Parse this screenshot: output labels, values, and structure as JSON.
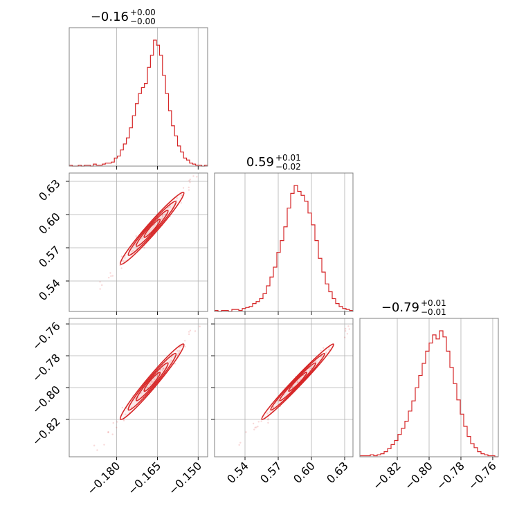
{
  "chart_data": {
    "type": "corner",
    "color": "#d62728",
    "grid": true,
    "parameters": [
      {
        "median": "−0.16",
        "upper": "+0.00",
        "lower": "−0.00",
        "range": [
          -0.1975,
          -0.1465
        ],
        "ticks": [
          -0.18,
          -0.165,
          -0.15
        ],
        "tick_labels": [
          "−0.180",
          "−0.165",
          "−0.150"
        ]
      },
      {
        "median": "0.59",
        "upper": "+0.01",
        "lower": "−0.02",
        "range": [
          0.5125,
          0.6375
        ],
        "ticks": [
          0.54,
          0.57,
          0.6,
          0.63
        ],
        "tick_labels": [
          "0.54",
          "0.57",
          "0.60",
          "0.63"
        ]
      },
      {
        "median": "−0.79",
        "upper": "+0.01",
        "lower": "−0.01",
        "range": [
          -0.8435,
          -0.7565
        ],
        "ticks": [
          -0.82,
          -0.8,
          -0.78,
          -0.76
        ],
        "tick_labels": [
          "−0.82",
          "−0.80",
          "−0.78",
          "−0.76"
        ]
      }
    ],
    "histograms": [
      {
        "param": 0,
        "counts": [
          1,
          0,
          0,
          1,
          0,
          1,
          1,
          0,
          2,
          1,
          1,
          2,
          3,
          3,
          4,
          8,
          10,
          16,
          22,
          28,
          38,
          50,
          62,
          72,
          78,
          82,
          98,
          110,
          125,
          120,
          110,
          90,
          72,
          55,
          40,
          30,
          20,
          14,
          8,
          6,
          3,
          2,
          1,
          1,
          0,
          1
        ]
      },
      {
        "param": 1,
        "counts": [
          1,
          0,
          1,
          1,
          0,
          2,
          2,
          1,
          3,
          4,
          5,
          8,
          10,
          13,
          18,
          26,
          35,
          45,
          60,
          72,
          86,
          105,
          120,
          128,
          122,
          118,
          112,
          100,
          88,
          72,
          54,
          40,
          28,
          20,
          13,
          8,
          5,
          3,
          2,
          1
        ]
      },
      {
        "param": 2,
        "counts": [
          1,
          1,
          1,
          2,
          1,
          2,
          3,
          5,
          8,
          12,
          16,
          22,
          28,
          35,
          45,
          55,
          68,
          80,
          92,
          104,
          112,
          120,
          116,
          124,
          118,
          104,
          88,
          72,
          56,
          42,
          30,
          20,
          13,
          9,
          5,
          3,
          2,
          1,
          1,
          0
        ]
      }
    ],
    "correlations": [
      {
        "x_param": 0,
        "y_param": 1,
        "rho": 0.99
      },
      {
        "x_param": 0,
        "y_param": 2,
        "rho": 0.99
      },
      {
        "x_param": 1,
        "y_param": 2,
        "rho": 0.995
      }
    ]
  }
}
